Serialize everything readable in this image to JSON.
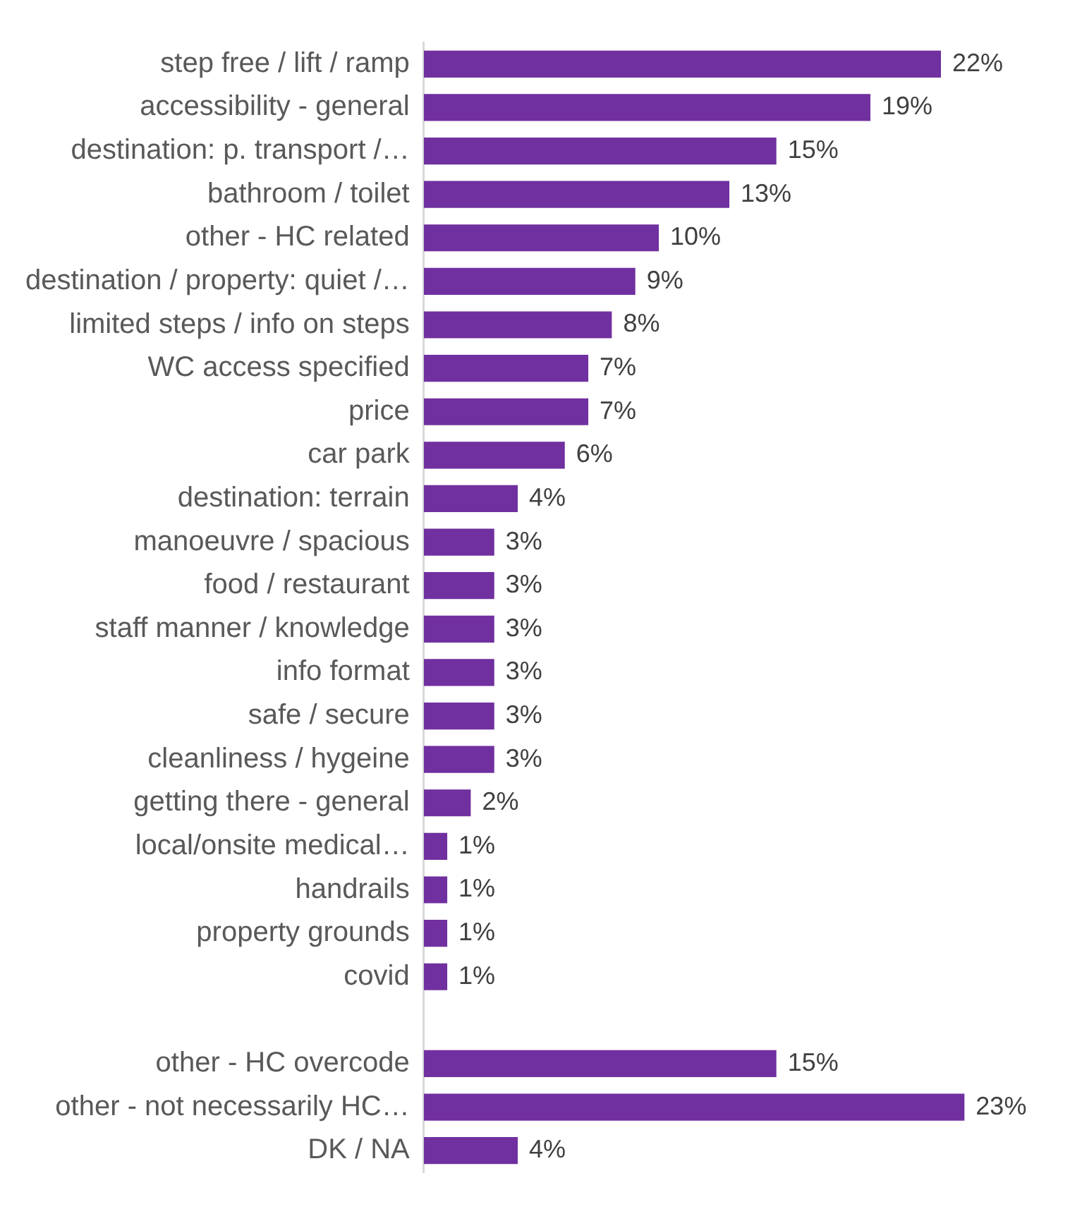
{
  "chart_data": {
    "type": "bar",
    "orientation": "horizontal",
    "categories": [
      "step free / lift / ramp",
      "accessibility - general",
      "destination: p. transport /…",
      "bathroom / toilet",
      "other - HC related",
      "destination / property: quiet /…",
      "limited steps / info on steps",
      "WC access specified",
      "price",
      "car park",
      "destination: terrain",
      "manoeuvre / spacious",
      "food / restaurant",
      "staff manner / knowledge",
      "info format",
      "safe / secure",
      "cleanliness / hygeine",
      "getting there - general",
      "local/onsite medical…",
      "handrails",
      "property grounds",
      "covid",
      null,
      "other - HC overcode",
      "other - not necessarily HC…",
      "DK / NA"
    ],
    "values": [
      22,
      19,
      15,
      13,
      10,
      9,
      8,
      7,
      7,
      6,
      4,
      3,
      3,
      3,
      3,
      3,
      3,
      2,
      1,
      1,
      1,
      1,
      null,
      15,
      23,
      4
    ],
    "value_labels": [
      "22%",
      "19%",
      "15%",
      "13%",
      "10%",
      "9%",
      "8%",
      "7%",
      "7%",
      "6%",
      "4%",
      "3%",
      "3%",
      "3%",
      "3%",
      "3%",
      "3%",
      "2%",
      "1%",
      "1%",
      "1%",
      "1%",
      null,
      "15%",
      "23%",
      "4%"
    ],
    "color": "#7030a0",
    "legend": false
  }
}
